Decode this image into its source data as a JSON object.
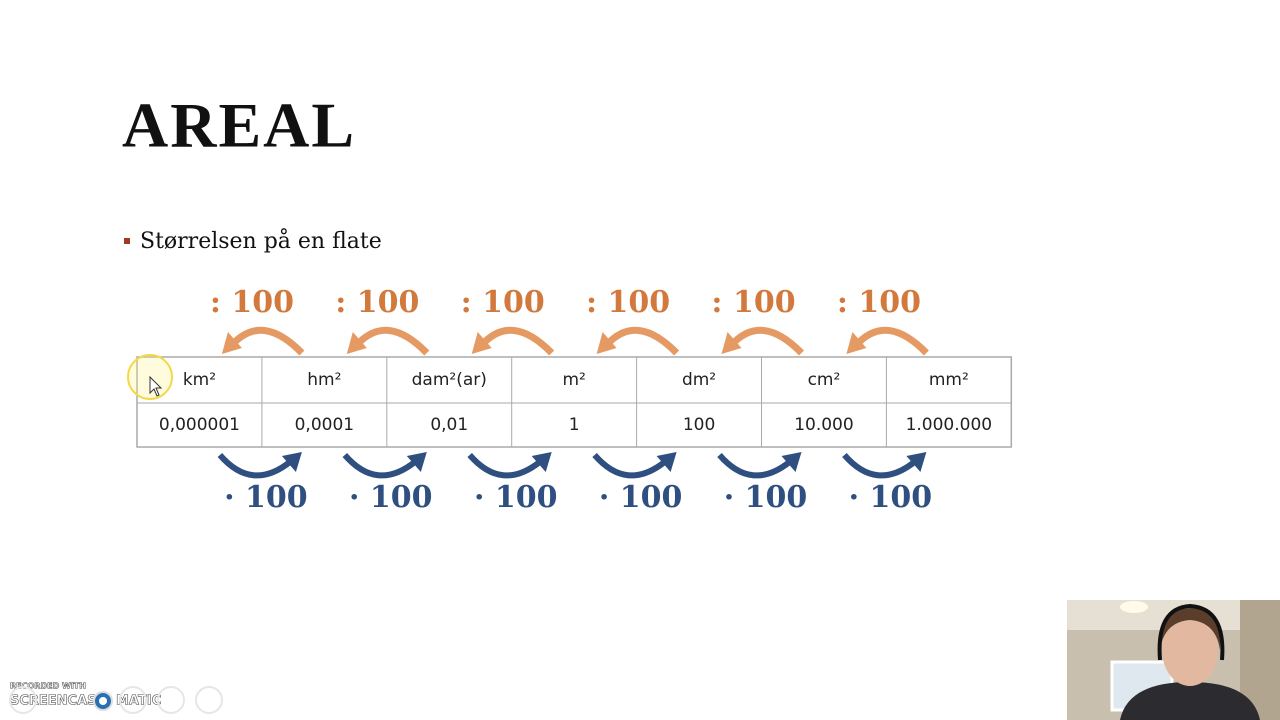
{
  "title": "AREAL",
  "bullet": "Størrelsen på en flate",
  "arrows": {
    "divide": [
      ": 100",
      ": 100",
      ": 100",
      ": 100",
      ": 100",
      ": 100"
    ],
    "multiply": [
      "· 100",
      "· 100",
      "· 100",
      "· 100",
      "· 100",
      "· 100"
    ]
  },
  "table": {
    "headers": [
      "km²",
      "hm²",
      "dam²(ar)",
      "m²",
      "dm²",
      "cm²",
      "mm²"
    ],
    "rows": [
      [
        "0,000001",
        "0,0001",
        "0,01",
        "1",
        "100",
        "10.000",
        "1.000.000"
      ]
    ]
  },
  "watermark": {
    "line1": "RECORDED WITH",
    "line2": "SCREENCAST",
    "line3": "MATIC"
  }
}
